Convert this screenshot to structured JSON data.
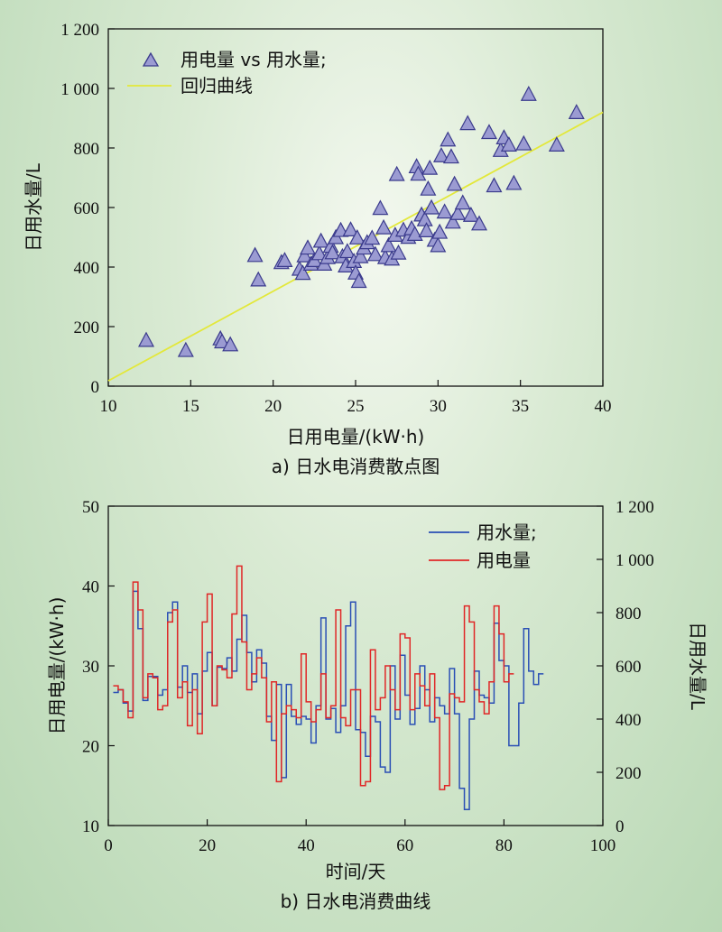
{
  "chart_data": [
    {
      "type": "scatter",
      "caption": "a) 日水电消费散点图",
      "xlabel": "日用电量/(kW·h)",
      "ylabel": "日用水量/L",
      "xlim": [
        10,
        40
      ],
      "ylim": [
        0,
        1200
      ],
      "xticks": [
        "10",
        "15",
        "20",
        "25",
        "30",
        "35",
        "40"
      ],
      "yticks": [
        "0",
        "200",
        "400",
        "600",
        "800",
        "1 000",
        "1 200"
      ],
      "legend": [
        "用电量 vs 用水量;",
        "回归曲线"
      ],
      "legend_position": "top-left",
      "colors": {
        "marker_fill": "#9b9bd2",
        "marker_stroke": "#3a3a8c",
        "regression": "#e3e83a"
      },
      "points": [
        [
          12.3,
          152
        ],
        [
          14.7,
          118
        ],
        [
          16.8,
          157
        ],
        [
          16.9,
          147
        ],
        [
          17.4,
          137
        ],
        [
          18.9,
          437
        ],
        [
          19.1,
          355
        ],
        [
          20.5,
          413
        ],
        [
          20.7,
          420
        ],
        [
          21.6,
          391
        ],
        [
          21.8,
          377
        ],
        [
          21.9,
          436
        ],
        [
          22.1,
          462
        ],
        [
          22.3,
          408
        ],
        [
          22.5,
          420
        ],
        [
          22.8,
          443
        ],
        [
          22.9,
          485
        ],
        [
          23.1,
          408
        ],
        [
          23.3,
          430
        ],
        [
          23.5,
          468
        ],
        [
          23.6,
          446
        ],
        [
          23.8,
          497
        ],
        [
          24.1,
          521
        ],
        [
          24.2,
          433
        ],
        [
          24.4,
          402
        ],
        [
          24.5,
          450
        ],
        [
          24.7,
          523
        ],
        [
          24.9,
          417
        ],
        [
          25.0,
          378
        ],
        [
          25.1,
          496
        ],
        [
          25.2,
          350
        ],
        [
          25.3,
          433
        ],
        [
          25.5,
          462
        ],
        [
          25.7,
          480
        ],
        [
          26.0,
          495
        ],
        [
          26.2,
          440
        ],
        [
          26.5,
          595
        ],
        [
          26.7,
          530
        ],
        [
          26.8,
          430
        ],
        [
          27.0,
          470
        ],
        [
          27.2,
          425
        ],
        [
          27.4,
          505
        ],
        [
          27.5,
          709
        ],
        [
          27.6,
          445
        ],
        [
          27.9,
          522
        ],
        [
          28.2,
          498
        ],
        [
          28.4,
          527
        ],
        [
          28.6,
          508
        ],
        [
          28.7,
          735
        ],
        [
          28.8,
          710
        ],
        [
          29.0,
          573
        ],
        [
          29.2,
          557
        ],
        [
          29.3,
          520
        ],
        [
          29.4,
          660
        ],
        [
          29.5,
          730
        ],
        [
          29.6,
          597
        ],
        [
          29.8,
          488
        ],
        [
          30.0,
          470
        ],
        [
          30.1,
          515
        ],
        [
          30.2,
          772
        ],
        [
          30.4,
          583
        ],
        [
          30.6,
          825
        ],
        [
          30.8,
          768
        ],
        [
          30.9,
          549
        ],
        [
          31.0,
          676
        ],
        [
          31.2,
          578
        ],
        [
          31.5,
          613
        ],
        [
          31.8,
          880
        ],
        [
          32.0,
          572
        ],
        [
          32.5,
          543
        ],
        [
          33.1,
          850
        ],
        [
          33.4,
          671
        ],
        [
          33.8,
          790
        ],
        [
          34.0,
          832
        ],
        [
          34.3,
          808
        ],
        [
          34.6,
          679
        ],
        [
          35.2,
          812
        ],
        [
          35.5,
          978
        ],
        [
          37.2,
          808
        ],
        [
          38.4,
          917
        ]
      ],
      "regression": {
        "x": [
          10,
          40
        ],
        "y": [
          18,
          920
        ]
      }
    },
    {
      "type": "line",
      "step": true,
      "caption": "b) 日水电消费曲线",
      "xlabel": "时间/天",
      "ylabel_left": "日用电量/(kW·h)",
      "ylabel_right": "日用水量/L",
      "xlim": [
        0,
        100
      ],
      "ylim_left": [
        10,
        50
      ],
      "ylim_right": [
        0,
        1200
      ],
      "xticks": [
        "0",
        "20",
        "40",
        "60",
        "80",
        "100"
      ],
      "yticks_left": [
        "10",
        "20",
        "30",
        "40",
        "50"
      ],
      "yticks_right": [
        "0",
        "200",
        "400",
        "600",
        "800",
        "1 000",
        "1 200"
      ],
      "legend_position": "top-right",
      "series": [
        {
          "name": "用水量;",
          "axis": "right",
          "color": "#2a4fb5",
          "values": [
            [
              1,
              500
            ],
            [
              2,
              510
            ],
            [
              3,
              460
            ],
            [
              4,
              430
            ],
            [
              5,
              880
            ],
            [
              6,
              740
            ],
            [
              7,
              470
            ],
            [
              8,
              560
            ],
            [
              9,
              560
            ],
            [
              10,
              490
            ],
            [
              11,
              510
            ],
            [
              12,
              800
            ],
            [
              13,
              840
            ],
            [
              14,
              520
            ],
            [
              15,
              600
            ],
            [
              16,
              500
            ],
            [
              17,
              570
            ],
            [
              18,
              420
            ],
            [
              19,
              580
            ],
            [
              20,
              650
            ],
            [
              21,
              450
            ],
            [
              22,
              595
            ],
            [
              23,
              590
            ],
            [
              24,
              630
            ],
            [
              25,
              580
            ],
            [
              26,
              700
            ],
            [
              27,
              790
            ],
            [
              28,
              650
            ],
            [
              29,
              540
            ],
            [
              30,
              660
            ],
            [
              31,
              610
            ],
            [
              32,
              410
            ],
            [
              33,
              320
            ],
            [
              34,
              530
            ],
            [
              35,
              180
            ],
            [
              36,
              530
            ],
            [
              37,
              410
            ],
            [
              38,
              380
            ],
            [
              39,
              410
            ],
            [
              40,
              400
            ],
            [
              41,
              310
            ],
            [
              42,
              450
            ],
            [
              43,
              780
            ],
            [
              44,
              400
            ],
            [
              45,
              440
            ],
            [
              46,
              350
            ],
            [
              47,
              450
            ],
            [
              48,
              750
            ],
            [
              49,
              840
            ],
            [
              50,
              360
            ],
            [
              51,
              350
            ],
            [
              52,
              260
            ],
            [
              53,
              410
            ],
            [
              54,
              390
            ],
            [
              55,
              220
            ],
            [
              56,
              200
            ],
            [
              57,
              600
            ],
            [
              58,
              400
            ],
            [
              59,
              640
            ],
            [
              60,
              490
            ],
            [
              61,
              380
            ],
            [
              62,
              440
            ],
            [
              63,
              600
            ],
            [
              64,
              510
            ],
            [
              65,
              390
            ],
            [
              66,
              480
            ],
            [
              67,
              450
            ],
            [
              68,
              420
            ],
            [
              69,
              590
            ],
            [
              70,
              420
            ],
            [
              71,
              140
            ],
            [
              72,
              60
            ],
            [
              73,
              400
            ],
            [
              74,
              580
            ],
            [
              75,
              490
            ],
            [
              76,
              480
            ],
            [
              77,
              460
            ],
            [
              78,
              760
            ],
            [
              79,
              620
            ],
            [
              80,
              600
            ],
            [
              81,
              300
            ],
            [
              82,
              300
            ],
            [
              83,
              460
            ],
            [
              84,
              740
            ],
            [
              85,
              580
            ],
            [
              86,
              530
            ],
            [
              87,
              570
            ]
          ]
        },
        {
          "name": "用电量",
          "axis": "left",
          "color": "#e02727",
          "values": [
            [
              1,
              27.5
            ],
            [
              2,
              27.0
            ],
            [
              3,
              25.5
            ],
            [
              4,
              23.5
            ],
            [
              5,
              40.5
            ],
            [
              6,
              37.0
            ],
            [
              7,
              26.0
            ],
            [
              8,
              29.0
            ],
            [
              9,
              28.5
            ],
            [
              10,
              24.5
            ],
            [
              11,
              25.0
            ],
            [
              12,
              35.5
            ],
            [
              13,
              37.0
            ],
            [
              14,
              26.0
            ],
            [
              15,
              28.0
            ],
            [
              16,
              22.5
            ],
            [
              17,
              27.0
            ],
            [
              18,
              21.5
            ],
            [
              19,
              35.5
            ],
            [
              20,
              39.0
            ],
            [
              21,
              25.0
            ],
            [
              22,
              30.0
            ],
            [
              23,
              29.5
            ],
            [
              24,
              28.5
            ],
            [
              25,
              36.5
            ],
            [
              26,
              42.5
            ],
            [
              27,
              33.0
            ],
            [
              28,
              27.0
            ],
            [
              29,
              29.0
            ],
            [
              30,
              31.0
            ],
            [
              31,
              28.5
            ],
            [
              32,
              23.0
            ],
            [
              33,
              28.0
            ],
            [
              34,
              15.5
            ],
            [
              35,
              24.0
            ],
            [
              36,
              25.0
            ],
            [
              37,
              24.5
            ],
            [
              38,
              23.5
            ],
            [
              39,
              31.5
            ],
            [
              40,
              25.5
            ],
            [
              41,
              23.0
            ],
            [
              42,
              24.5
            ],
            [
              43,
              29.0
            ],
            [
              44,
              23.5
            ],
            [
              45,
              25.0
            ],
            [
              46,
              37.0
            ],
            [
              47,
              23.5
            ],
            [
              48,
              22.5
            ],
            [
              49,
              27.0
            ],
            [
              50,
              27.0
            ],
            [
              51,
              15.0
            ],
            [
              52,
              15.5
            ],
            [
              53,
              32.0
            ],
            [
              54,
              24.5
            ],
            [
              55,
              26.0
            ],
            [
              56,
              30.0
            ],
            [
              57,
              27.0
            ],
            [
              58,
              24.5
            ],
            [
              59,
              34.0
            ],
            [
              60,
              33.5
            ],
            [
              61,
              24.5
            ],
            [
              62,
              29.0
            ],
            [
              63,
              27.5
            ],
            [
              64,
              25.0
            ],
            [
              65,
              29.0
            ],
            [
              66,
              23.5
            ],
            [
              67,
              14.5
            ],
            [
              68,
              15.0
            ],
            [
              69,
              26.5
            ],
            [
              70,
              26.0
            ],
            [
              71,
              25.5
            ],
            [
              72,
              37.5
            ],
            [
              73,
              35.5
            ],
            [
              74,
              27.0
            ],
            [
              75,
              25.5
            ],
            [
              76,
              24.0
            ],
            [
              77,
              28.0
            ],
            [
              78,
              37.5
            ],
            [
              79,
              34.0
            ],
            [
              80,
              28.0
            ],
            [
              81,
              29.0
            ]
          ]
        }
      ]
    }
  ]
}
